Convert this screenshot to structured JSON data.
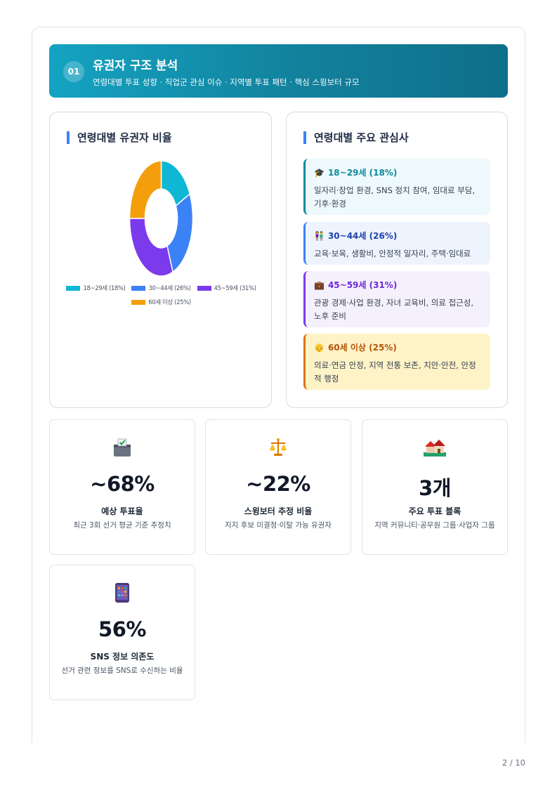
{
  "section": {
    "number": "01",
    "title": "유권자 구조 분석",
    "subtitle": "연령대별 투표 성향 · 직업군 관심 이슈 · 지역별 투표 패턴 · 핵심 스윙보터 규모"
  },
  "chart_panel": {
    "title": "연령대별 유권자 비율"
  },
  "chart_data": {
    "type": "pie",
    "title": "",
    "categories": [
      "18~29세 (18%)",
      "30~44세 (26%)",
      "45~59세 (31%)",
      "60세 이상 (25%)"
    ],
    "values": [
      18,
      26,
      31,
      25
    ],
    "colors": [
      "#0eb7d4",
      "#3b82f6",
      "#7c3aed",
      "#f59e0b"
    ],
    "legend": "bottom"
  },
  "interests_panel": {
    "title": "연령대별 주요 관심사",
    "items": [
      {
        "icon": "graduation-cap-icon",
        "heading": "18~29세 (18%)",
        "text": "일자리·창업 환경, SNS 정치 참여, 임대료 부담, 기후·환경",
        "color": "#0e8a9a",
        "bg": "#eef9fd"
      },
      {
        "icon": "family-icon",
        "heading": "30~44세 (26%)",
        "text": "교육·보육, 생활비, 안정적 일자리, 주택·임대료",
        "color": "#1e40af",
        "bg": "#eef4fd"
      },
      {
        "icon": "briefcase-icon",
        "heading": "45~59세 (31%)",
        "text": "관광 경제·사업 환경, 자녀 교육비, 의료 접근성, 노후 준비",
        "color": "#6d28d9",
        "bg": "#f4f1fd"
      },
      {
        "icon": "elder-icon",
        "heading": "60세 이상 (25%)",
        "text": "의료·연금 안정, 지역 전통 보존, 치안·안전, 안정적 행정",
        "color": "#b45309",
        "bg": "#fef3c7"
      }
    ]
  },
  "stats": [
    {
      "icon": "ballot-box-icon",
      "value": "~68%",
      "label": "예상 투표율",
      "desc": "최근 3회 선거 평균 기준 추정치"
    },
    {
      "icon": "scales-icon",
      "value": "~22%",
      "label": "스윙보터 추정 비율",
      "desc": "지지 후보 미결정·이탈 가능 유권자"
    },
    {
      "icon": "houses-icon",
      "value": "3개",
      "label": "주요 투표 블록",
      "desc": "지역 커뮤니티·공무원 그룹·사업자 그룹"
    },
    {
      "icon": "smartphone-icon",
      "value": "56%",
      "label": "SNS 정보 의존도",
      "desc": "선거 관련 정보를 SNS로 수신하는 비율"
    }
  ],
  "page": {
    "number": "2 / 10"
  }
}
